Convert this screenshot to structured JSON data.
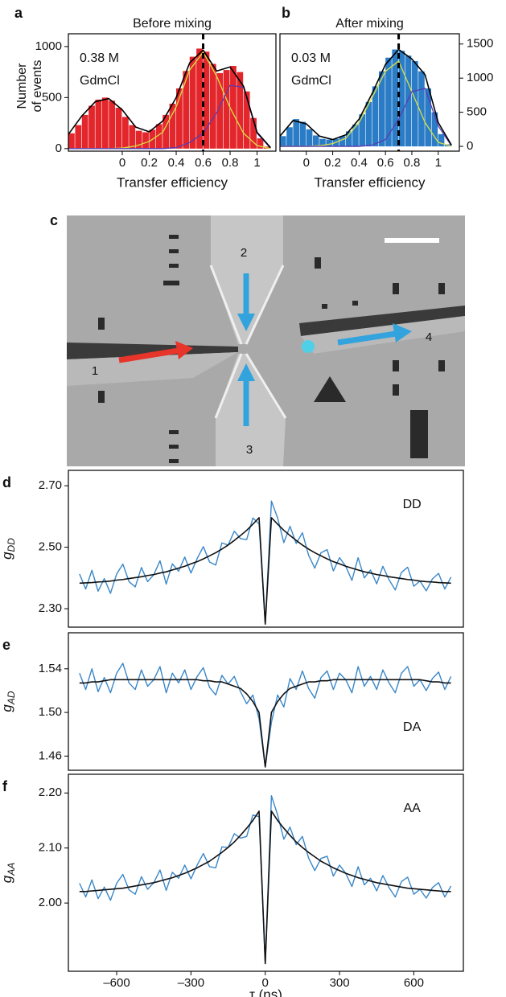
{
  "chart_data": [
    {
      "type": "histogram",
      "panel_label": "a",
      "title": "Before mixing",
      "annotation": [
        "0.38 M",
        "GdmCl"
      ],
      "ylabel": [
        "Number",
        "of events"
      ],
      "xlabel": "Transfer efficiency",
      "color": "#e3262b",
      "bins": [
        -0.4,
        -0.35,
        -0.3,
        -0.25,
        -0.2,
        -0.15,
        -0.1,
        -0.05,
        0,
        0.05,
        0.1,
        0.15,
        0.2,
        0.25,
        0.3,
        0.35,
        0.4,
        0.45,
        0.5,
        0.55,
        0.6,
        0.65,
        0.7,
        0.75,
        0.8,
        0.85,
        0.9,
        0.95,
        1,
        1.05,
        1.1
      ],
      "counts": [
        150,
        230,
        330,
        420,
        480,
        500,
        470,
        400,
        310,
        230,
        175,
        160,
        185,
        240,
        330,
        440,
        590,
        760,
        900,
        980,
        950,
        830,
        740,
        770,
        810,
        750,
        560,
        300,
        100,
        20
      ],
      "fit_x": [
        -0.4,
        -0.3,
        -0.2,
        -0.1,
        0,
        0.1,
        0.2,
        0.3,
        0.4,
        0.5,
        0.6,
        0.7,
        0.8,
        0.9,
        1,
        1.1
      ],
      "fits": [
        {
          "color": "#d8e040",
          "values": [
            0,
            0,
            0,
            0,
            5,
            25,
            70,
            160,
            410,
            770,
            945,
            710,
            400,
            150,
            30,
            0
          ]
        },
        {
          "color": "#5a3cb4",
          "values": [
            0,
            0,
            0,
            0,
            0,
            0,
            0,
            0,
            10,
            60,
            150,
            350,
            620,
            600,
            150,
            5
          ]
        },
        {
          "color": "#000000",
          "values": [
            140,
            320,
            460,
            490,
            380,
            210,
            165,
            270,
            500,
            840,
            965,
            760,
            800,
            610,
            160,
            10
          ]
        }
      ],
      "mean_line": 0.6,
      "xlim": [
        -0.4,
        1.14
      ],
      "xticks": [
        0,
        0.2,
        0.4,
        0.6,
        0.8,
        1
      ],
      "ylim": [
        -25,
        1125
      ],
      "yticks": [
        0,
        500,
        1000
      ],
      "yaxis_side": "left"
    },
    {
      "type": "histogram",
      "panel_label": "b",
      "title": "After mixing",
      "annotation": [
        "0.03 M",
        "GdmCl"
      ],
      "xlabel": "Transfer efficiency",
      "color": "#2a7cc6",
      "bins": [
        -0.2,
        -0.15,
        -0.1,
        -0.05,
        0,
        0.05,
        0.1,
        0.15,
        0.2,
        0.25,
        0.3,
        0.35,
        0.4,
        0.45,
        0.5,
        0.55,
        0.6,
        0.65,
        0.7,
        0.75,
        0.8,
        0.85,
        0.9,
        0.95,
        1,
        1.05,
        1.1
      ],
      "counts": [
        150,
        280,
        400,
        360,
        250,
        160,
        110,
        100,
        110,
        150,
        220,
        320,
        470,
        650,
        880,
        1100,
        1300,
        1420,
        1400,
        1330,
        1250,
        1100,
        850,
        500,
        180,
        30
      ],
      "fit_x": [
        -0.2,
        -0.1,
        0,
        0.1,
        0.2,
        0.3,
        0.4,
        0.5,
        0.6,
        0.7,
        0.8,
        0.9,
        1,
        1.1
      ],
      "fits": [
        {
          "color": "#d8e040",
          "values": [
            0,
            0,
            0,
            10,
            40,
            120,
            350,
            720,
            1100,
            1250,
            800,
            350,
            60,
            0
          ]
        },
        {
          "color": "#5a3cb4",
          "values": [
            0,
            0,
            0,
            0,
            0,
            0,
            0,
            20,
            100,
            400,
            800,
            850,
            300,
            10
          ]
        },
        {
          "color": "#000000",
          "values": [
            150,
            380,
            330,
            150,
            100,
            170,
            400,
            780,
            1200,
            1420,
            1280,
            1050,
            350,
            20
          ]
        }
      ],
      "mean_line": 0.7,
      "xlim": [
        -0.2,
        1.16
      ],
      "xticks": [
        0,
        0.2,
        0.4,
        0.6,
        0.8,
        1
      ],
      "ylim": [
        -70,
        1650
      ],
      "yticks": [
        0,
        500,
        1000,
        1500
      ],
      "yaxis_side": "right"
    },
    {
      "type": "line",
      "panel_label": "d",
      "annotation": [
        "DD"
      ],
      "ylabel_symbol": "g",
      "ylabel_subscript": "DD",
      "x": [
        -750,
        -725,
        -700,
        -675,
        -650,
        -625,
        -600,
        -575,
        -550,
        -525,
        -500,
        -475,
        -450,
        -425,
        -400,
        -375,
        -350,
        -325,
        -300,
        -275,
        -250,
        -225,
        -200,
        -175,
        -150,
        -125,
        -100,
        -75,
        -50,
        -25,
        0,
        25,
        50,
        75,
        100,
        125,
        150,
        175,
        200,
        225,
        250,
        275,
        300,
        325,
        350,
        375,
        400,
        425,
        450,
        475,
        500,
        525,
        550,
        575,
        600,
        625,
        650,
        675,
        700,
        725,
        750
      ],
      "series": [
        {
          "color": "#3a87c8",
          "values": [
            2.413,
            2.364,
            2.425,
            2.357,
            2.398,
            2.35,
            2.413,
            2.445,
            2.388,
            2.371,
            2.434,
            2.388,
            2.411,
            2.456,
            2.38,
            2.446,
            2.422,
            2.468,
            2.416,
            2.463,
            2.502,
            2.452,
            2.442,
            2.514,
            2.507,
            2.552,
            2.528,
            2.525,
            2.595,
            2.576,
            2.25,
            2.65,
            2.595,
            2.515,
            2.568,
            2.512,
            2.547,
            2.474,
            2.432,
            2.482,
            2.492,
            2.423,
            2.466,
            2.438,
            2.392,
            2.466,
            2.4,
            2.426,
            2.381,
            2.438,
            2.394,
            2.361,
            2.418,
            2.435,
            2.373,
            2.39,
            2.358,
            2.397,
            2.415,
            2.364,
            2.403
          ]
        },
        {
          "color": "#111111",
          "values": [
            2.383,
            2.384,
            2.385,
            2.387,
            2.388,
            2.39,
            2.393,
            2.395,
            2.398,
            2.401,
            2.404,
            2.408,
            2.411,
            2.416,
            2.42,
            2.426,
            2.432,
            2.438,
            2.446,
            2.453,
            2.462,
            2.472,
            2.482,
            2.494,
            2.507,
            2.522,
            2.538,
            2.555,
            2.575,
            2.596,
            2.25,
            2.596,
            2.575,
            2.555,
            2.538,
            2.522,
            2.507,
            2.494,
            2.482,
            2.472,
            2.462,
            2.453,
            2.446,
            2.438,
            2.432,
            2.426,
            2.42,
            2.416,
            2.411,
            2.408,
            2.404,
            2.401,
            2.398,
            2.395,
            2.393,
            2.39,
            2.388,
            2.387,
            2.385,
            2.384,
            2.383
          ]
        }
      ],
      "xlim": [
        -795,
        800
      ],
      "ylim": [
        2.24,
        2.75
      ],
      "yticks": [
        {
          "value": 2.3,
          "label": "2.30"
        },
        {
          "value": 2.5,
          "label": "2.50"
        },
        {
          "value": 2.7,
          "label": "2.70"
        }
      ]
    },
    {
      "type": "line",
      "panel_label": "e",
      "annotation": [
        "DA"
      ],
      "ylabel_symbol": "g",
      "ylabel_subscript": "AD",
      "x": [
        -750,
        -725,
        -700,
        -675,
        -650,
        -625,
        -600,
        -575,
        -550,
        -525,
        -500,
        -475,
        -450,
        -425,
        -400,
        -375,
        -350,
        -325,
        -300,
        -275,
        -250,
        -225,
        -200,
        -175,
        -150,
        -125,
        -100,
        -75,
        -50,
        -25,
        0,
        25,
        50,
        75,
        100,
        125,
        150,
        175,
        200,
        225,
        250,
        275,
        300,
        325,
        350,
        375,
        400,
        425,
        450,
        475,
        500,
        525,
        550,
        575,
        600,
        625,
        650,
        675,
        700,
        725,
        750
      ],
      "series": [
        {
          "color": "#3a87c8",
          "values": [
            1.536,
            1.521,
            1.54,
            1.519,
            1.532,
            1.518,
            1.536,
            1.545,
            1.527,
            1.521,
            1.539,
            1.524,
            1.53,
            1.542,
            1.518,
            1.536,
            1.527,
            1.539,
            1.521,
            1.533,
            1.541,
            1.523,
            1.516,
            1.534,
            1.526,
            1.533,
            1.519,
            1.508,
            1.516,
            1.494,
            1.45,
            1.491,
            1.516,
            1.505,
            1.531,
            1.521,
            1.538,
            1.522,
            1.513,
            1.532,
            1.538,
            1.521,
            1.536,
            1.53,
            1.518,
            1.542,
            1.524,
            1.533,
            1.521,
            1.539,
            1.527,
            1.518,
            1.536,
            1.542,
            1.524,
            1.53,
            1.52,
            1.531,
            1.537,
            1.521,
            1.533
          ]
        },
        {
          "color": "#111111",
          "values": [
            1.527,
            1.527,
            1.528,
            1.528,
            1.529,
            1.53,
            1.53,
            1.53,
            1.53,
            1.53,
            1.53,
            1.53,
            1.53,
            1.53,
            1.53,
            1.53,
            1.53,
            1.53,
            1.53,
            1.53,
            1.529,
            1.529,
            1.528,
            1.528,
            1.526,
            1.524,
            1.522,
            1.517,
            1.51,
            1.5,
            1.45,
            1.5,
            1.51,
            1.517,
            1.522,
            1.524,
            1.526,
            1.528,
            1.528,
            1.529,
            1.529,
            1.53,
            1.53,
            1.53,
            1.53,
            1.53,
            1.53,
            1.53,
            1.53,
            1.53,
            1.53,
            1.53,
            1.53,
            1.53,
            1.53,
            1.53,
            1.529,
            1.528,
            1.528,
            1.527,
            1.527
          ]
        }
      ],
      "xlim": [
        -795,
        800
      ],
      "ylim": [
        1.447,
        1.573
      ],
      "yticks": [
        1.46,
        {
          "value": 1.5,
          "label": "1.50"
        },
        1.54
      ]
    },
    {
      "type": "line",
      "panel_label": "f",
      "annotation": [
        "AA"
      ],
      "ylabel_symbol": "g",
      "ylabel_subscript": "AA",
      "xlabel": "τ (ns)",
      "x": [
        -750,
        -725,
        -700,
        -675,
        -650,
        -625,
        -600,
        -575,
        -550,
        -525,
        -500,
        -475,
        -450,
        -425,
        -400,
        -375,
        -350,
        -325,
        -300,
        -275,
        -250,
        -225,
        -200,
        -175,
        -150,
        -125,
        -100,
        -75,
        -50,
        -25,
        0,
        25,
        50,
        75,
        100,
        125,
        150,
        175,
        200,
        225,
        250,
        275,
        300,
        325,
        350,
        375,
        400,
        425,
        450,
        475,
        500,
        525,
        550,
        575,
        600,
        625,
        650,
        675,
        700,
        725,
        750
      ],
      "series": [
        {
          "color": "#3a87c8",
          "values": [
            2.036,
            2.011,
            2.042,
            2.008,
            2.029,
            2.005,
            2.036,
            2.052,
            2.024,
            2.016,
            2.048,
            2.025,
            2.037,
            2.06,
            2.023,
            2.056,
            2.045,
            2.069,
            2.044,
            2.069,
            2.09,
            2.066,
            2.064,
            2.102,
            2.101,
            2.126,
            2.118,
            2.121,
            2.16,
            2.157,
            1.89,
            2.195,
            2.16,
            2.116,
            2.138,
            2.106,
            2.121,
            2.082,
            2.059,
            2.081,
            2.085,
            2.049,
            2.069,
            2.054,
            2.03,
            2.066,
            2.033,
            2.045,
            2.022,
            2.05,
            2.028,
            2.011,
            2.039,
            2.047,
            2.016,
            2.025,
            2.009,
            2.028,
            2.037,
            2.011,
            2.031
          ]
        },
        {
          "color": "#111111",
          "values": [
            2.021,
            2.021,
            2.022,
            2.023,
            2.024,
            2.025,
            2.026,
            2.027,
            2.029,
            2.031,
            2.033,
            2.035,
            2.037,
            2.04,
            2.043,
            2.046,
            2.05,
            2.054,
            2.059,
            2.064,
            2.07,
            2.076,
            2.084,
            2.092,
            2.101,
            2.111,
            2.123,
            2.136,
            2.15,
            2.167,
            1.89,
            2.167,
            2.15,
            2.136,
            2.123,
            2.111,
            2.101,
            2.092,
            2.084,
            2.076,
            2.07,
            2.064,
            2.059,
            2.054,
            2.05,
            2.046,
            2.043,
            2.04,
            2.037,
            2.035,
            2.033,
            2.031,
            2.029,
            2.027,
            2.026,
            2.025,
            2.024,
            2.023,
            2.022,
            2.021,
            2.021
          ]
        }
      ],
      "xlim": [
        -795,
        800
      ],
      "ylim": [
        1.876,
        2.234
      ],
      "xticks": [
        {
          "value": -600,
          "label": "–600"
        },
        {
          "value": -300,
          "label": "–300"
        },
        0,
        300,
        600
      ],
      "yticks": [
        {
          "value": 2,
          "label": "2.00"
        },
        {
          "value": 2.1,
          "label": "2.10"
        },
        {
          "value": 2.2,
          "label": "2.20"
        }
      ]
    }
  ],
  "image": {
    "label": "c",
    "markers": [
      "1",
      "2",
      "3",
      "4"
    ]
  }
}
